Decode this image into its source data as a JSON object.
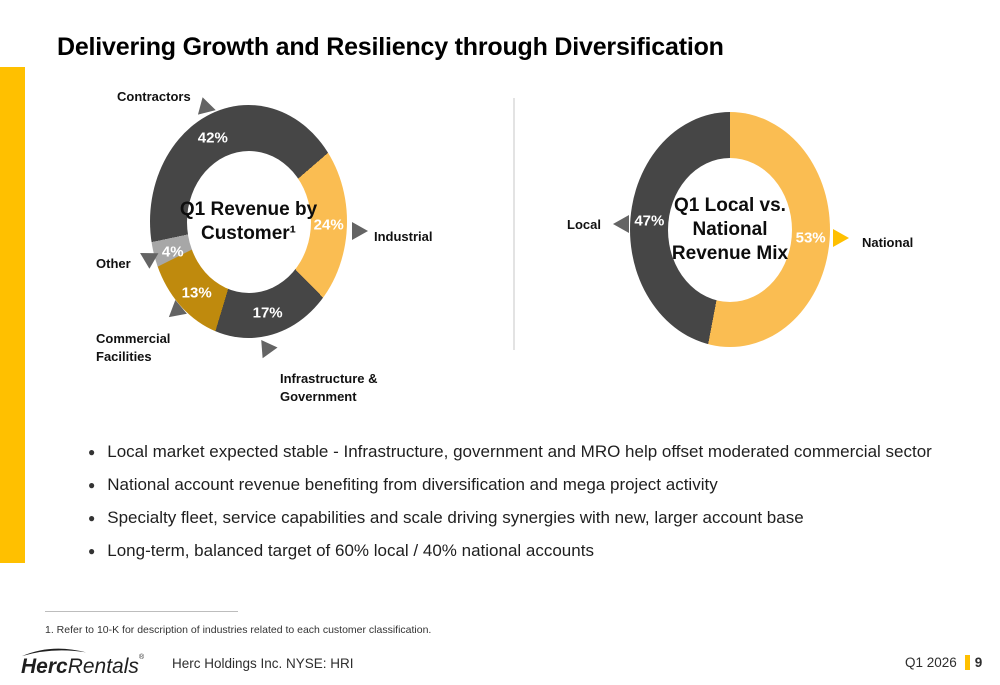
{
  "slide": {
    "title": "Delivering Growth and Resiliency through Diversification",
    "accent_color": "#FFC000"
  },
  "chart_data": [
    {
      "id": "q1-revenue-by-customer",
      "type": "donut",
      "title": "Q1 Revenue by Customer",
      "center_lines": [
        "Q1 Revenue by",
        "Customer¹"
      ],
      "rotation_deg": 258,
      "legend_position": "callout-labels",
      "slices": [
        {
          "label": "Contractors",
          "value": 42,
          "pct_label": "42%",
          "color": "#464646"
        },
        {
          "label": "Industrial",
          "value": 24,
          "pct_label": "24%",
          "color": "#FABD52"
        },
        {
          "label": "Infrastructure & Government",
          "value": 17,
          "pct_label": "17%",
          "color": "#464646"
        },
        {
          "label": "Commercial Facilities",
          "value": 13,
          "pct_label": "13%",
          "color": "#BF8A0D"
        },
        {
          "label": "Other",
          "value": 4,
          "pct_label": "4%",
          "color": "#A7A7A7"
        }
      ]
    },
    {
      "id": "q1-local-vs-national",
      "type": "donut",
      "title": "Q1 Local vs. National Revenue Mix",
      "center_lines": [
        "Q1 Local vs.",
        "National",
        "Revenue Mix"
      ],
      "rotation_deg": 0,
      "legend_position": "callout-labels",
      "slices": [
        {
          "label": "National",
          "value": 53,
          "pct_label": "53%",
          "color": "#FABD52"
        },
        {
          "label": "Local",
          "value": 47,
          "pct_label": "47%",
          "color": "#464646"
        }
      ]
    }
  ],
  "bullets": [
    "Local market expected stable - Infrastructure, government and MRO help offset moderated commercial sector",
    "National account revenue benefiting from diversification and mega project activity",
    "Specialty fleet, service capabilities and scale driving synergies with new, larger account base",
    "Long-term, balanced target of 60% local / 40% national accounts"
  ],
  "footnote": {
    "text": "1. Refer to 10-K for description of industries related to each customer classification."
  },
  "footer": {
    "logo_herc": "Herc",
    "logo_rentals": "Rentals",
    "logo_reg": "®",
    "company": "Herc Holdings Inc.  NYSE: HRI",
    "quarter": "Q1 2026",
    "page": "9"
  }
}
